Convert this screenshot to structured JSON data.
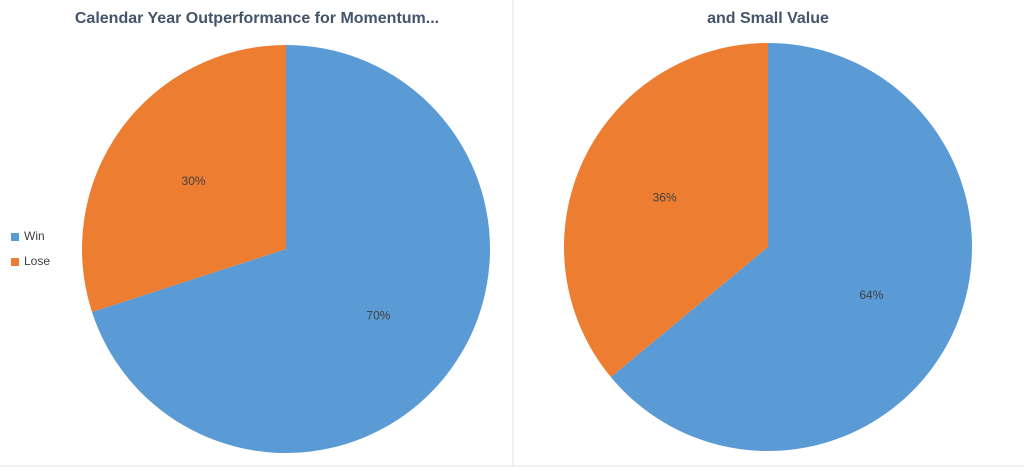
{
  "chart_data": [
    {
      "type": "pie",
      "title": "Calendar Year Outperformance for Momentum...",
      "categories": [
        "Win",
        "Lose"
      ],
      "values": [
        70,
        30
      ],
      "value_labels": [
        "70%",
        "30%"
      ],
      "colors": [
        "#5b9bd5",
        "#ed7d31"
      ],
      "legend": "left"
    },
    {
      "type": "pie",
      "title": "and Small Value",
      "values": [
        64,
        36
      ],
      "value_labels": [
        "64%",
        "36%"
      ],
      "colors": [
        "#5b9bd5",
        "#ed7d31"
      ]
    }
  ]
}
